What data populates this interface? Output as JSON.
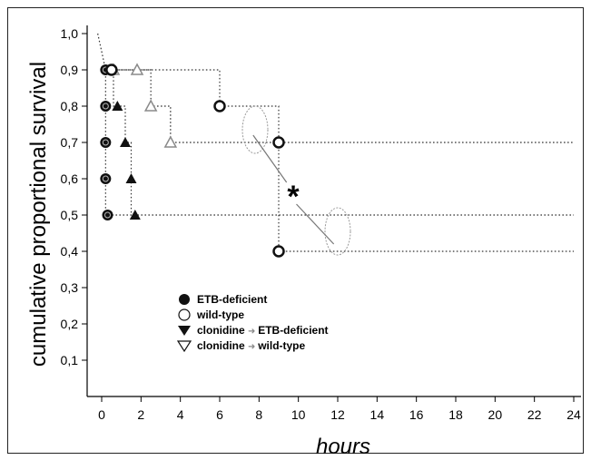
{
  "chart_data": {
    "type": "line",
    "subtype": "kaplan-meier step",
    "title": "",
    "xlabel": "hours",
    "ylabel": "cumulative proportional survival",
    "xlim": [
      -1,
      24.5
    ],
    "ylim": [
      0,
      1.02
    ],
    "x_ticks": [
      "0",
      "2",
      "4",
      "6",
      "8",
      "10",
      "12",
      "14",
      "16",
      "18",
      "20",
      "22",
      "24"
    ],
    "y_ticks": [
      "0,1",
      "0,2",
      "0,3",
      "0,4",
      "0,5",
      "0,6",
      "0,7",
      "0,8",
      "0,9",
      "1,0"
    ],
    "grid": false,
    "legend_position": "lower-left inside",
    "series": [
      {
        "name": "ETB-deficient",
        "marker": "filled-circle",
        "x": [
          0.2,
          0.2,
          0.2,
          0.2,
          0.3
        ],
        "y": [
          0.9,
          0.8,
          0.7,
          0.6,
          0.5
        ]
      },
      {
        "name": "wild-type",
        "marker": "open-circle",
        "x": [
          0.5,
          6,
          9,
          9
        ],
        "y": [
          0.9,
          0.8,
          0.7,
          0.4
        ]
      },
      {
        "name": "clonidine ➜ ETB-deficient",
        "marker": "filled-triangle-down",
        "x": [
          0.6,
          0.8,
          1.2,
          1.5,
          1.7
        ],
        "y": [
          0.9,
          0.8,
          0.7,
          0.6,
          0.5
        ]
      },
      {
        "name": "clonidine ➜ wild-type",
        "marker": "open-triangle-up",
        "x": [
          0.6,
          1.8,
          2.5,
          3.5
        ],
        "y": [
          0.9,
          0.9,
          0.8,
          0.7
        ]
      }
    ],
    "annotations": [
      {
        "text": "*"
      }
    ]
  },
  "legend": {
    "items": [
      {
        "prefix": "",
        "middle": "",
        "label": "ETB-deficient"
      },
      {
        "prefix": "",
        "middle": "",
        "label": "wild-type"
      },
      {
        "prefix": "clonidine",
        "middle": "➜",
        "label": "ETB-deficient"
      },
      {
        "prefix": "clonidine",
        "middle": "➜",
        "label": "wild-type"
      }
    ]
  },
  "colors": {
    "dark": "#111111",
    "gray": "#8a8a8a",
    "line": "#333333",
    "bracket": "#777777"
  }
}
